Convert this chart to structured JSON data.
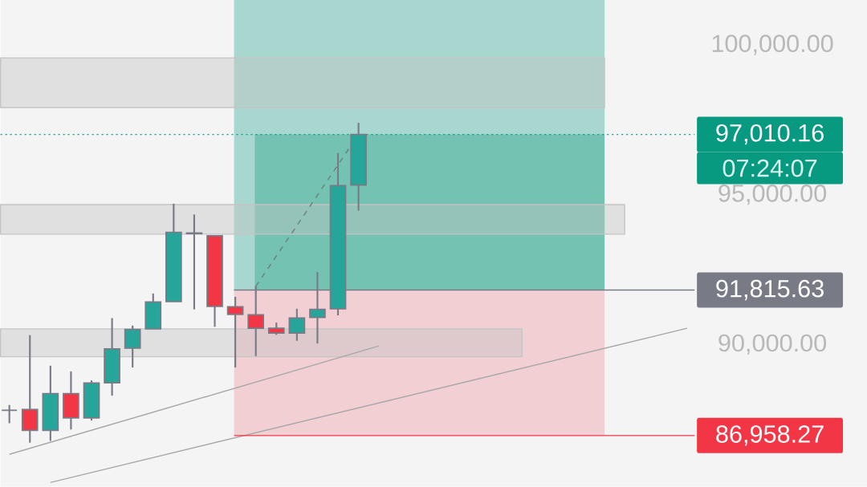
{
  "chart_data": {
    "type": "candlestick",
    "categories": [
      null,
      null,
      null,
      null,
      null,
      null,
      null,
      null,
      null,
      null,
      null,
      null,
      null,
      null,
      null,
      null,
      null,
      null,
      null,
      null,
      null,
      null,
      null,
      null,
      null,
      null,
      null,
      null,
      null,
      null,
      null,
      null,
      null,
      null
    ],
    "ohlc": [
      [
        87800,
        87980,
        87370,
        87800
      ],
      [
        87830,
        90310,
        86720,
        87130
      ],
      [
        87130,
        89290,
        86780,
        88360
      ],
      [
        88360,
        89100,
        87160,
        87550
      ],
      [
        87550,
        88800,
        87460,
        88710
      ],
      [
        88720,
        90880,
        88290,
        89850
      ],
      [
        89880,
        90630,
        89230,
        90500
      ],
      [
        90520,
        91700,
        90520,
        91420
      ],
      [
        91430,
        94700,
        91430,
        93740
      ],
      [
        93720,
        94340,
        91170,
        93700
      ],
      [
        93630,
        93630,
        90590,
        91270
      ],
      [
        91260,
        91590,
        89230,
        91000
      ],
      [
        90990,
        91950,
        89610,
        90540
      ],
      [
        90540,
        90730,
        90320,
        90380
      ],
      [
        90380,
        91190,
        90120,
        90880
      ],
      [
        90900,
        92420,
        90030,
        91170
      ],
      [
        91190,
        96390,
        90970,
        95300
      ],
      [
        95320,
        97400,
        94470,
        97010
      ],
      null,
      null,
      null,
      null,
      null,
      null,
      null,
      null,
      null,
      null,
      null,
      null,
      null,
      null,
      null,
      null
    ],
    "colors": [
      "#787b86",
      "#f23645",
      "#26a69a",
      "#f23645",
      "#26a69a",
      "#26a69a",
      "#26a69a",
      "#26a69a",
      "#26a69a",
      "#f23645",
      "#f23645",
      "#f23645",
      "#f23645",
      "#f23645",
      "#26a69a",
      "#26a69a",
      "#26a69a",
      "#26a69a",
      null,
      null,
      null,
      null,
      null,
      null,
      null,
      null,
      null,
      null,
      null,
      null,
      null,
      null,
      null,
      null
    ],
    "series": [
      {
        "type": "line",
        "color": "#a8a8a8",
        "values": [
          86330,
          null,
          null,
          null,
          null,
          null,
          null,
          null,
          null,
          null,
          null,
          null,
          null,
          null,
          null,
          null,
          null,
          null,
          89950,
          null,
          null,
          null,
          null,
          null,
          null,
          null,
          null,
          null,
          null,
          null,
          null,
          null,
          null,
          null
        ]
      },
      {
        "type": "line",
        "color": "#a8a8a8",
        "values": [
          null,
          null,
          85390,
          null,
          null,
          null,
          null,
          null,
          null,
          null,
          null,
          null,
          null,
          null,
          null,
          null,
          null,
          null,
          null,
          null,
          null,
          null,
          null,
          null,
          null,
          null,
          null,
          null,
          null,
          null,
          null,
          null,
          null,
          90540
        ]
      },
      {
        "type": "line",
        "color": "#6f7f7c",
        "line_style": "dashed",
        "values": [
          null,
          null,
          null,
          null,
          null,
          null,
          null,
          null,
          null,
          null,
          null,
          null,
          91940,
          null,
          null,
          null,
          null,
          97010,
          null,
          null,
          null,
          null,
          null,
          null,
          null,
          null,
          null,
          null,
          null,
          null,
          null,
          null,
          null,
          null
        ]
      }
    ],
    "bands": [
      {
        "axis": "y",
        "from": 91815.63,
        "to": 101500,
        "color": "#a8d7cf"
      },
      {
        "axis": "y",
        "from": 91815.63,
        "to": 97010.16,
        "color": "#74c3b2"
      },
      {
        "axis": "y",
        "from": 86958.27,
        "to": 91815.63,
        "color": "#f1cfd3"
      },
      {
        "axis": "y",
        "from": 97910,
        "to": 99570,
        "color": "#c4c4c4"
      },
      {
        "axis": "y",
        "from": 93680,
        "to": 94670,
        "color": "#c4c4c4"
      },
      {
        "axis": "y",
        "from": 89590,
        "to": 90520,
        "color": "#c4c4c4"
      }
    ],
    "ref_lines": [
      {
        "axis": "y",
        "value": 97010.16,
        "label": "97,010.16",
        "color": "#089981",
        "line_style": "dotted"
      },
      {
        "axis": "y",
        "value": 91815.63,
        "label": "91,815.63",
        "color": "#787b86"
      },
      {
        "axis": "y",
        "value": 86958.27,
        "label": "86,958.27",
        "color": "#f23645"
      }
    ],
    "annotations": [
      "07:24:07"
    ],
    "ylim": [
      85250,
      101500
    ],
    "yticks": [
      {
        "value": 90000,
        "label": "90,000.00"
      },
      {
        "value": 95000,
        "label": "95,000.00"
      },
      {
        "value": 100000,
        "label": "100,000.00"
      }
    ]
  }
}
